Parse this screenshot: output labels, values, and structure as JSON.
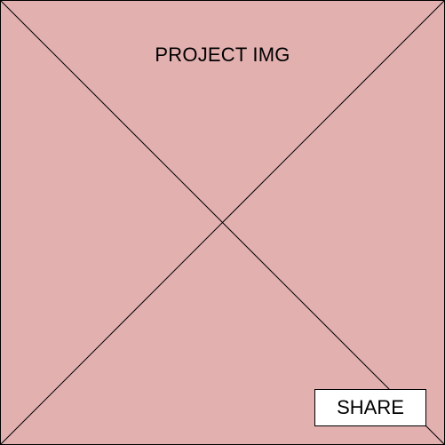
{
  "placeholder": {
    "title": "PROJECT IMG",
    "background_color": "#e3b0b0",
    "stroke_color": "#000000"
  },
  "share_button": {
    "label": "SHARE"
  }
}
